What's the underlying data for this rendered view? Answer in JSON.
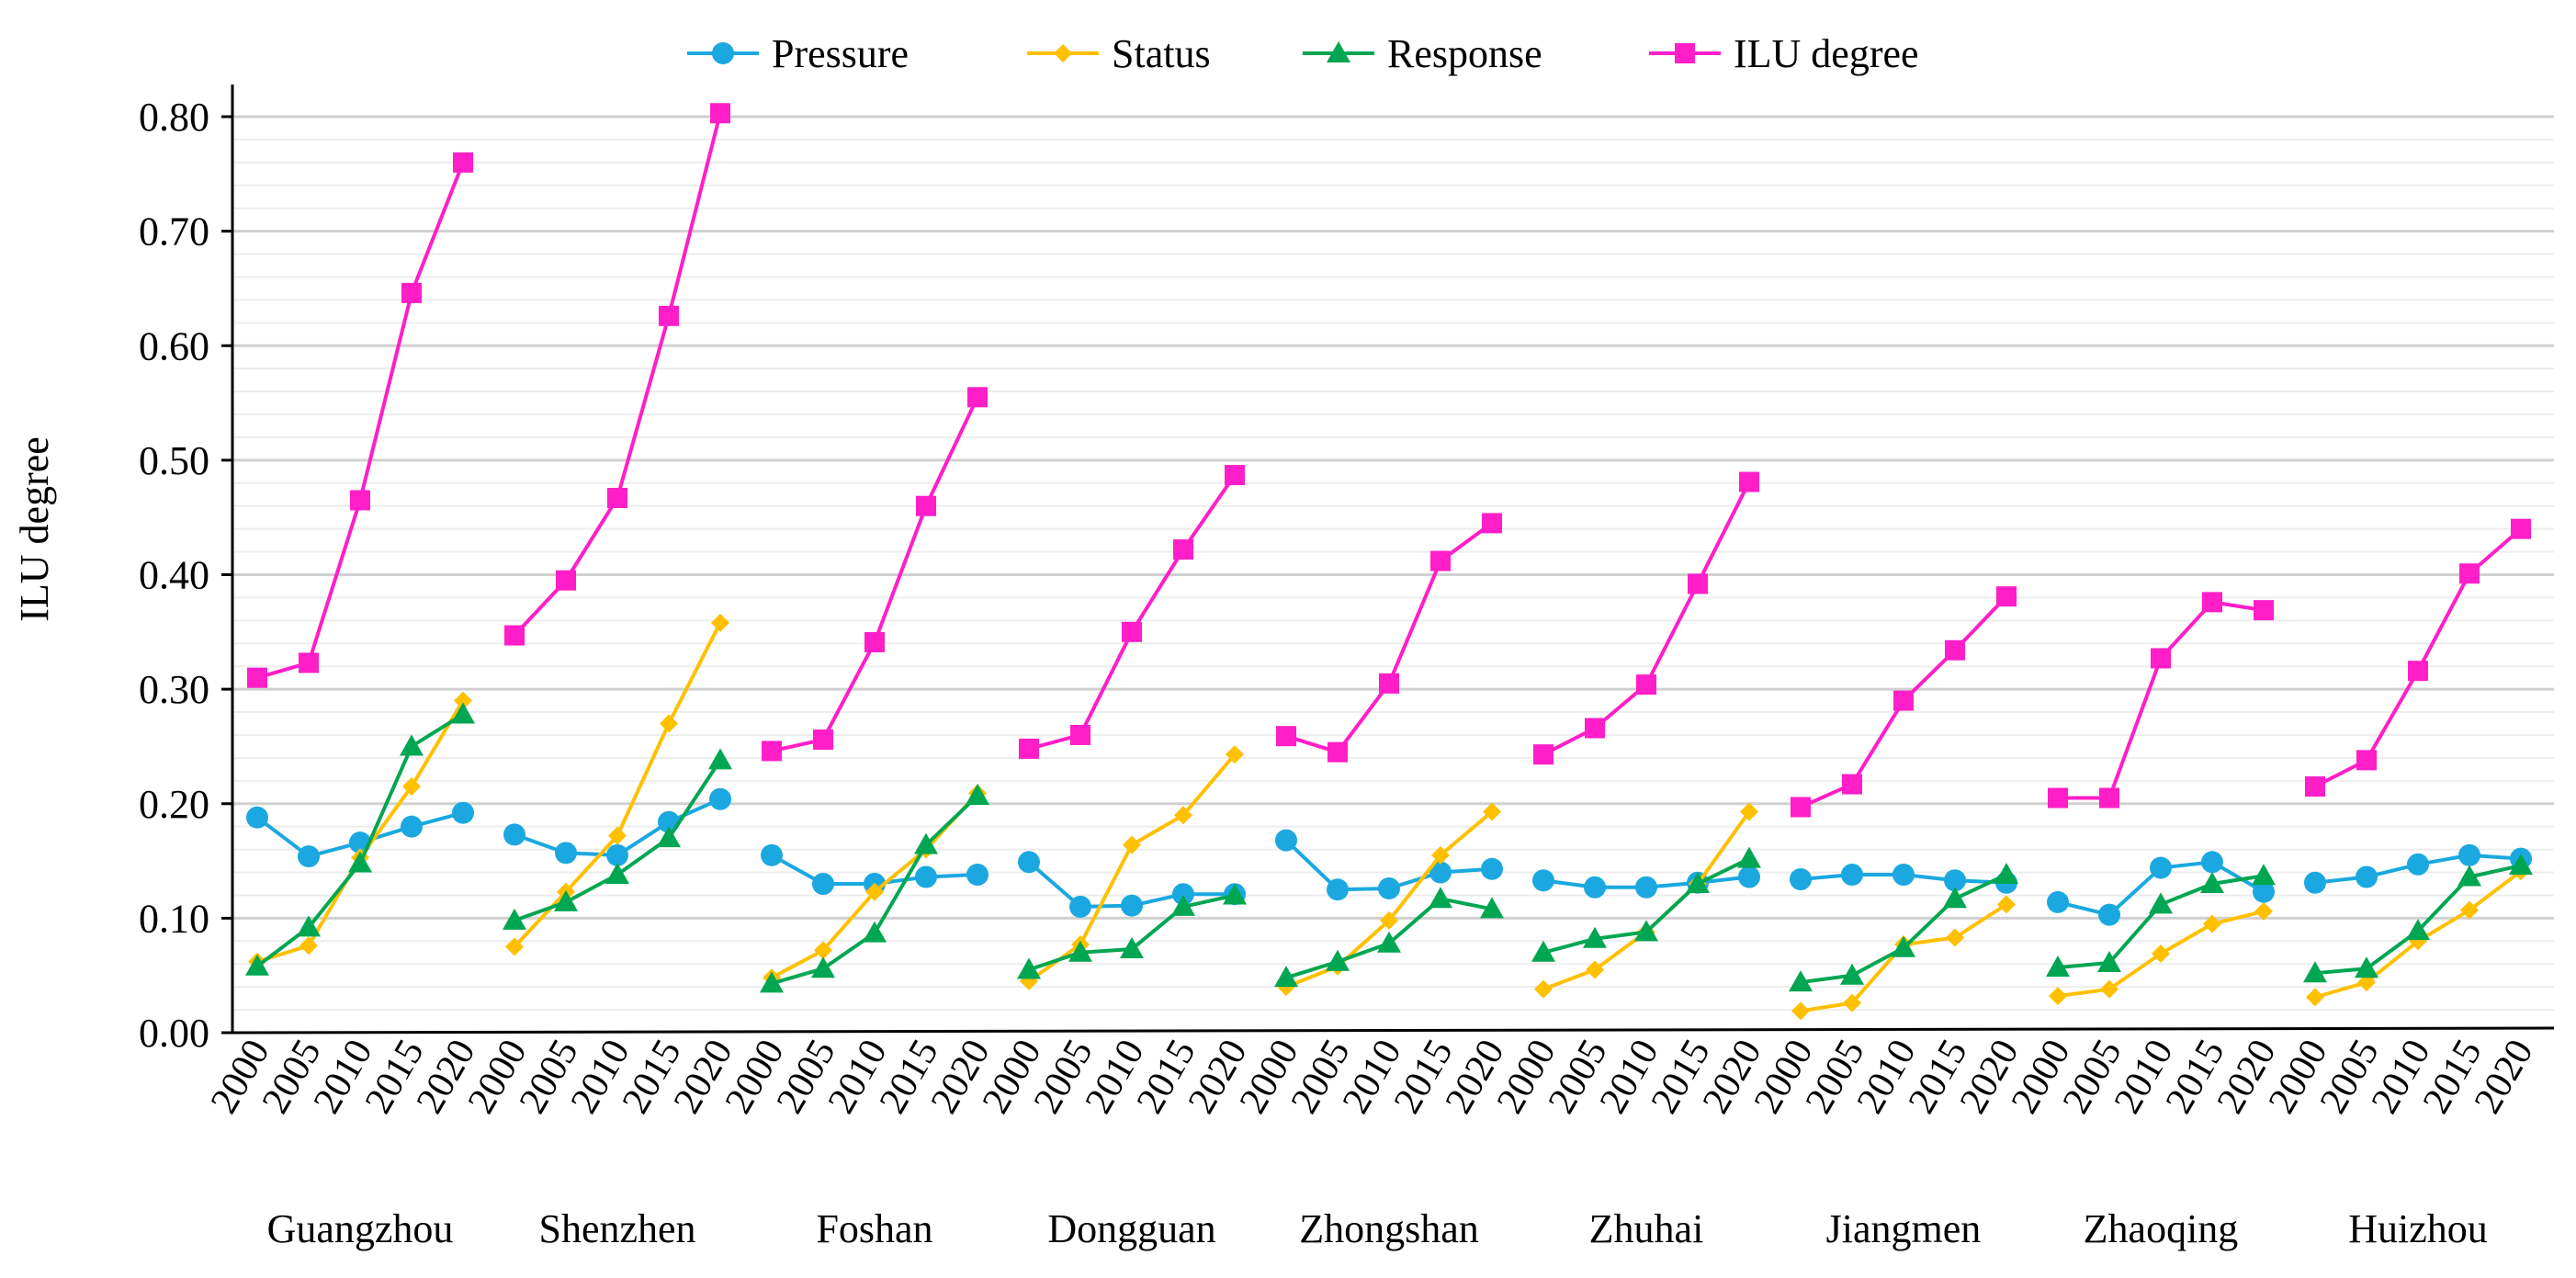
{
  "chart_data": {
    "type": "line",
    "title": "",
    "ylabel": "ILU degree",
    "xlabel": "",
    "ylim": [
      0,
      0.82
    ],
    "yticks": [
      "0.00",
      "0.10",
      "0.20",
      "0.30",
      "0.40",
      "0.50",
      "0.60",
      "0.70",
      "0.80"
    ],
    "ytick_values": [
      0,
      0.1,
      0.2,
      0.3,
      0.4,
      0.5,
      0.6,
      0.7,
      0.8
    ],
    "grid": true,
    "legend_position": "top-center",
    "years": [
      "2000",
      "2005",
      "2010",
      "2015",
      "2020"
    ],
    "cities": [
      "Guangzhou",
      "Shenzhen",
      "Foshan",
      "Dongguan",
      "Zhongshan",
      "Zhuhai",
      "Jiangmen",
      "Zhaoqing",
      "Huizhou"
    ],
    "series": [
      {
        "name": "Pressure",
        "color": "#1BA8E0",
        "marker": "circle",
        "values": [
          [
            0.188,
            0.154,
            0.166,
            0.18,
            0.192
          ],
          [
            0.173,
            0.157,
            0.155,
            0.184,
            0.204
          ],
          [
            0.155,
            0.13,
            0.13,
            0.136,
            0.138
          ],
          [
            0.149,
            0.11,
            0.111,
            0.121,
            0.121
          ],
          [
            0.168,
            0.125,
            0.126,
            0.14,
            0.143
          ],
          [
            0.133,
            0.127,
            0.127,
            0.131,
            0.136
          ],
          [
            0.134,
            0.138,
            0.138,
            0.133,
            0.131
          ],
          [
            0.114,
            0.103,
            0.144,
            0.149,
            0.123
          ],
          [
            0.131,
            0.136,
            0.147,
            0.155,
            0.152
          ]
        ]
      },
      {
        "name": "Status",
        "color": "#FFC000",
        "marker": "diamond",
        "values": [
          [
            0.062,
            0.076,
            0.153,
            0.215,
            0.29
          ],
          [
            0.075,
            0.123,
            0.172,
            0.27,
            0.358
          ],
          [
            0.048,
            0.072,
            0.123,
            0.16,
            0.209
          ],
          [
            0.045,
            0.077,
            0.164,
            0.19,
            0.243
          ],
          [
            0.04,
            0.058,
            0.098,
            0.155,
            0.193
          ],
          [
            0.038,
            0.055,
            0.088,
            0.13,
            0.193
          ],
          [
            0.019,
            0.026,
            0.077,
            0.083,
            0.112
          ],
          [
            0.032,
            0.038,
            0.069,
            0.095,
            0.106
          ],
          [
            0.031,
            0.044,
            0.08,
            0.107,
            0.141
          ]
        ]
      },
      {
        "name": "Response",
        "color": "#00A651",
        "marker": "triangle",
        "values": [
          [
            0.058,
            0.092,
            0.148,
            0.25,
            0.278
          ],
          [
            0.098,
            0.114,
            0.138,
            0.17,
            0.238
          ],
          [
            0.043,
            0.056,
            0.087,
            0.164,
            0.207
          ],
          [
            0.055,
            0.07,
            0.073,
            0.11,
            0.12
          ],
          [
            0.048,
            0.062,
            0.078,
            0.117,
            0.108
          ],
          [
            0.07,
            0.082,
            0.088,
            0.13,
            0.152
          ],
          [
            0.044,
            0.05,
            0.074,
            0.117,
            0.138
          ],
          [
            0.057,
            0.061,
            0.112,
            0.13,
            0.137
          ],
          [
            0.052,
            0.056,
            0.089,
            0.136,
            0.146
          ]
        ]
      },
      {
        "name": "ILU degree",
        "color": "#FF1EC8",
        "marker": "square",
        "values": [
          [
            0.31,
            0.323,
            0.465,
            0.646,
            0.76
          ],
          [
            0.347,
            0.395,
            0.467,
            0.626,
            0.803
          ],
          [
            0.246,
            0.256,
            0.341,
            0.46,
            0.555
          ],
          [
            0.248,
            0.26,
            0.35,
            0.422,
            0.487
          ],
          [
            0.259,
            0.245,
            0.305,
            0.412,
            0.445
          ],
          [
            0.243,
            0.266,
            0.304,
            0.392,
            0.481
          ],
          [
            0.197,
            0.217,
            0.29,
            0.334,
            0.381
          ],
          [
            0.205,
            0.205,
            0.327,
            0.376,
            0.369
          ],
          [
            0.215,
            0.238,
            0.316,
            0.401,
            0.44
          ]
        ]
      }
    ]
  }
}
